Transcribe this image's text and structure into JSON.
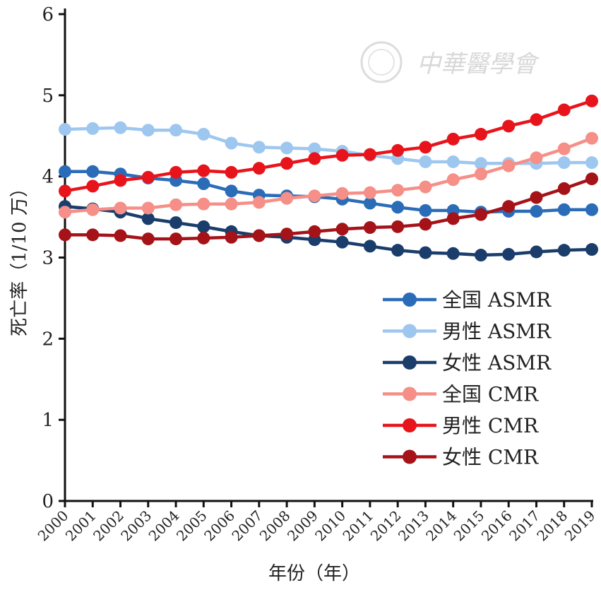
{
  "watermark": {
    "text": "中華醫學會"
  },
  "chart_data": {
    "type": "line",
    "xlabel": "年份（年）",
    "ylabel": "死亡率（1/10 万）",
    "ylim": [
      0,
      6
    ],
    "yticks": [
      "0",
      "1",
      "2",
      "3",
      "4",
      "5",
      "6"
    ],
    "categories": [
      "2000",
      "2001",
      "2002",
      "2003",
      "2004",
      "2005",
      "2006",
      "2007",
      "2008",
      "2009",
      "2010",
      "2011",
      "2012",
      "2013",
      "2014",
      "2015",
      "2016",
      "2017",
      "2018",
      "2019"
    ],
    "legend_position": "lower-right",
    "grid": false,
    "series": [
      {
        "name": "全国 ASMR",
        "color": "#2b6cb8",
        "values": [
          4.06,
          4.06,
          4.03,
          3.98,
          3.95,
          3.91,
          3.82,
          3.77,
          3.76,
          3.75,
          3.72,
          3.67,
          3.62,
          3.58,
          3.58,
          3.56,
          3.57,
          3.57,
          3.59,
          3.59
        ]
      },
      {
        "name": "男性 ASMR",
        "color": "#9ec7ef",
        "values": [
          4.58,
          4.59,
          4.6,
          4.57,
          4.57,
          4.52,
          4.41,
          4.36,
          4.35,
          4.34,
          4.31,
          4.26,
          4.22,
          4.18,
          4.18,
          4.16,
          4.16,
          4.16,
          4.17,
          4.17
        ]
      },
      {
        "name": "女性 ASMR",
        "color": "#1a3d6b",
        "values": [
          3.63,
          3.6,
          3.56,
          3.48,
          3.43,
          3.38,
          3.32,
          3.27,
          3.25,
          3.22,
          3.19,
          3.14,
          3.09,
          3.06,
          3.05,
          3.03,
          3.04,
          3.07,
          3.09,
          3.1
        ]
      },
      {
        "name": "全国 CMR",
        "color": "#f58f87",
        "values": [
          3.56,
          3.59,
          3.61,
          3.61,
          3.65,
          3.66,
          3.66,
          3.68,
          3.73,
          3.76,
          3.79,
          3.8,
          3.83,
          3.87,
          3.96,
          4.03,
          4.13,
          4.23,
          4.34,
          4.47
        ]
      },
      {
        "name": "男性 CMR",
        "color": "#e8141b",
        "values": [
          3.82,
          3.88,
          3.95,
          3.99,
          4.05,
          4.07,
          4.05,
          4.1,
          4.16,
          4.22,
          4.26,
          4.27,
          4.32,
          4.36,
          4.46,
          4.52,
          4.62,
          4.7,
          4.82,
          4.93
        ]
      },
      {
        "name": "女性 CMR",
        "color": "#a51218",
        "values": [
          3.28,
          3.28,
          3.27,
          3.23,
          3.23,
          3.24,
          3.25,
          3.27,
          3.29,
          3.32,
          3.35,
          3.37,
          3.38,
          3.41,
          3.48,
          3.53,
          3.63,
          3.74,
          3.85,
          3.97
        ]
      }
    ]
  }
}
